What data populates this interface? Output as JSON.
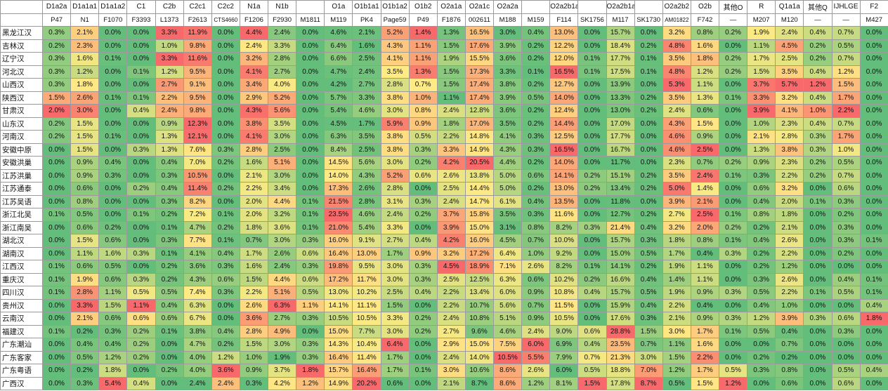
{
  "table": {
    "haplogroups": [
      "D1a2a",
      "D1a1a1",
      "D1a1a2",
      "C1",
      "C2b",
      "C2c1",
      "C2c2",
      "N1a",
      "N1b",
      "",
      "O1a",
      "O1b1a1",
      "O1b1a2",
      "O1b2",
      "O2a1a",
      "O2a1c",
      "O2a2a",
      "",
      "O2a2b1a2",
      "",
      "O2a2b1a1",
      "",
      "O2a2b2",
      "O2b",
      "其他O",
      "R",
      "Q1a1a",
      "其他Q",
      "IJHLGE",
      "F2"
    ],
    "markers": [
      "P47",
      "N1",
      "F1070",
      "F3393",
      "L1373",
      "F2613",
      "CTS4660",
      "F1206",
      "F2930",
      "M1811",
      "M119",
      "PK4",
      "Page59",
      "P49",
      "F1876",
      "002611",
      "M188",
      "M159",
      "F114",
      "SK1756",
      "M117",
      "SK1730",
      "AM01822",
      "F742",
      "—",
      "M207",
      "M120",
      "—",
      "—",
      "M427"
    ],
    "rows": [
      {
        "region": "黑龙江汉",
        "values": [
          "0.3%",
          "2.1%",
          "0.0%",
          "0.0%",
          "3.3%",
          "11.9%",
          "0.0%",
          "4.4%",
          "2.4%",
          "0.0%",
          "4.6%",
          "2.1%",
          "5.2%",
          "1.4%",
          "1.3%",
          "16.5%",
          "3.0%",
          "0.4%",
          "13.0%",
          "0.0%",
          "15.7%",
          "0.0%",
          "3.2%",
          "0.8%",
          "0.2%",
          "1.9%",
          "2.4%",
          "0.4%",
          "0.7%",
          "0.0%"
        ]
      },
      {
        "region": "吉林汉",
        "values": [
          "0.2%",
          "2.3%",
          "0.0%",
          "0.0%",
          "1.0%",
          "9.8%",
          "0.0%",
          "2.4%",
          "3.3%",
          "0.0%",
          "6.4%",
          "1.6%",
          "4.3%",
          "1.1%",
          "1.5%",
          "17.6%",
          "3.9%",
          "0.2%",
          "12.2%",
          "0.0%",
          "18.4%",
          "0.2%",
          "4.8%",
          "1.6%",
          "0.0%",
          "1.1%",
          "4.5%",
          "0.2%",
          "0.5%",
          "0.0%"
        ]
      },
      {
        "region": "辽宁汉",
        "values": [
          "0.3%",
          "1.6%",
          "0.1%",
          "0.0%",
          "3.3%",
          "11.6%",
          "0.0%",
          "3.2%",
          "2.8%",
          "0.0%",
          "6.6%",
          "2.5%",
          "4.1%",
          "1.1%",
          "1.9%",
          "15.5%",
          "3.6%",
          "0.2%",
          "12.0%",
          "0.1%",
          "17.7%",
          "0.1%",
          "3.5%",
          "1.8%",
          "0.2%",
          "1.7%",
          "2.5%",
          "0.2%",
          "0.7%",
          "0.0%"
        ]
      },
      {
        "region": "河北汉",
        "values": [
          "0.3%",
          "1.2%",
          "0.0%",
          "0.1%",
          "1.2%",
          "9.5%",
          "0.0%",
          "4.1%",
          "2.7%",
          "0.0%",
          "4.7%",
          "2.4%",
          "3.5%",
          "1.3%",
          "1.5%",
          "17.3%",
          "3.3%",
          "0.1%",
          "16.5%",
          "0.1%",
          "17.5%",
          "0.1%",
          "4.8%",
          "1.2%",
          "0.2%",
          "1.5%",
          "3.5%",
          "0.4%",
          "1.2%",
          "0.0%"
        ]
      },
      {
        "region": "山西汉",
        "values": [
          "0.3%",
          "1.8%",
          "0.0%",
          "0.0%",
          "2.7%",
          "9.1%",
          "0.0%",
          "3.4%",
          "4.0%",
          "0.0%",
          "4.2%",
          "2.7%",
          "2.8%",
          "0.7%",
          "1.5%",
          "17.4%",
          "3.8%",
          "0.2%",
          "12.7%",
          "0.0%",
          "13.9%",
          "0.0%",
          "5.3%",
          "1.1%",
          "0.0%",
          "3.7%",
          "5.7%",
          "1.2%",
          "1.5%",
          "0.0%"
        ]
      },
      {
        "region": "陕西汉",
        "values": [
          "1.5%",
          "2.6%",
          "0.1%",
          "0.1%",
          "2.2%",
          "9.5%",
          "0.0%",
          "2.9%",
          "5.2%",
          "0.0%",
          "5.7%",
          "3.3%",
          "3.8%",
          "1.0%",
          "1.1%",
          "17.4%",
          "3.9%",
          "0.5%",
          "14.0%",
          "0.0%",
          "13.3%",
          "0.2%",
          "3.5%",
          "1.3%",
          "0.1%",
          "3.3%",
          "3.2%",
          "0.4%",
          "1.7%",
          "0.0%"
        ]
      },
      {
        "region": "甘肃汉",
        "values": [
          "2.0%",
          "3.0%",
          "0.0%",
          "0.4%",
          "2.4%",
          "9.8%",
          "0.0%",
          "4.3%",
          "5.6%",
          "0.0%",
          "5.4%",
          "4.6%",
          "3.0%",
          "0.8%",
          "2.4%",
          "12.8%",
          "3.6%",
          "0.2%",
          "12.4%",
          "0.0%",
          "13.0%",
          "0.2%",
          "2.4%",
          "0.6%",
          "0.0%",
          "3.9%",
          "4.1%",
          "1.0%",
          "2.2%",
          "0.0%"
        ]
      },
      {
        "region": "山东汉",
        "values": [
          "0.2%",
          "1.5%",
          "0.0%",
          "0.0%",
          "0.9%",
          "12.3%",
          "0.0%",
          "3.8%",
          "3.5%",
          "0.0%",
          "4.5%",
          "1.7%",
          "5.9%",
          "0.9%",
          "1.8%",
          "17.0%",
          "3.5%",
          "0.2%",
          "14.4%",
          "0.0%",
          "17.0%",
          "0.0%",
          "4.3%",
          "1.5%",
          "0.0%",
          "1.0%",
          "2.3%",
          "0.4%",
          "0.7%",
          "0.0%"
        ]
      },
      {
        "region": "河南汉",
        "values": [
          "0.2%",
          "1.5%",
          "0.1%",
          "0.0%",
          "1.3%",
          "12.1%",
          "0.0%",
          "4.1%",
          "3.0%",
          "0.0%",
          "6.3%",
          "3.5%",
          "3.8%",
          "0.5%",
          "2.2%",
          "14.8%",
          "4.1%",
          "0.3%",
          "12.5%",
          "0.0%",
          "17.7%",
          "0.0%",
          "4.6%",
          "0.9%",
          "0.0%",
          "2.1%",
          "2.8%",
          "0.3%",
          "1.7%",
          "0.0%"
        ]
      },
      {
        "region": "安徽中原",
        "values": [
          "0.0%",
          "1.5%",
          "0.0%",
          "0.3%",
          "1.3%",
          "7.6%",
          "0.3%",
          "2.8%",
          "2.5%",
          "0.0%",
          "8.4%",
          "2.5%",
          "3.8%",
          "0.3%",
          "3.3%",
          "14.9%",
          "4.3%",
          "0.3%",
          "16.5%",
          "0.0%",
          "16.7%",
          "0.0%",
          "4.6%",
          "2.5%",
          "0.0%",
          "1.3%",
          "3.8%",
          "0.3%",
          "1.0%",
          "0.0%"
        ]
      },
      {
        "region": "安徽洪巢",
        "values": [
          "0.0%",
          "0.9%",
          "0.4%",
          "0.0%",
          "0.4%",
          "7.0%",
          "0.2%",
          "1.6%",
          "5.1%",
          "0.0%",
          "14.5%",
          "5.6%",
          "3.0%",
          "0.2%",
          "4.2%",
          "20.5%",
          "4.4%",
          "0.2%",
          "14.0%",
          "0.0%",
          "11.7%",
          "0.0%",
          "2.3%",
          "0.7%",
          "0.2%",
          "0.9%",
          "2.3%",
          "0.2%",
          "0.5%",
          "0.0%"
        ]
      },
      {
        "region": "江苏洪巢",
        "values": [
          "0.0%",
          "0.9%",
          "0.3%",
          "0.0%",
          "0.3%",
          "10.5%",
          "0.0%",
          "2.1%",
          "3.0%",
          "0.0%",
          "14.0%",
          "4.3%",
          "5.2%",
          "0.6%",
          "2.6%",
          "13.8%",
          "5.0%",
          "0.6%",
          "14.1%",
          "0.2%",
          "15.1%",
          "0.2%",
          "3.5%",
          "2.4%",
          "0.1%",
          "0.3%",
          "2.2%",
          "0.2%",
          "0.7%",
          "0.0%"
        ]
      },
      {
        "region": "江苏通泰",
        "values": [
          "0.0%",
          "0.6%",
          "0.0%",
          "0.2%",
          "0.4%",
          "11.4%",
          "0.2%",
          "2.2%",
          "3.4%",
          "0.0%",
          "17.3%",
          "2.6%",
          "2.8%",
          "0.0%",
          "2.5%",
          "14.4%",
          "5.0%",
          "0.2%",
          "13.0%",
          "0.2%",
          "13.4%",
          "0.2%",
          "5.0%",
          "1.4%",
          "0.0%",
          "0.6%",
          "3.2%",
          "0.0%",
          "0.6%",
          "0.0%"
        ]
      },
      {
        "region": "江苏吴语",
        "values": [
          "0.0%",
          "0.8%",
          "0.0%",
          "0.0%",
          "0.3%",
          "8.2%",
          "0.0%",
          "2.0%",
          "4.4%",
          "0.1%",
          "21.5%",
          "2.8%",
          "3.1%",
          "0.3%",
          "2.4%",
          "14.7%",
          "6.1%",
          "0.4%",
          "13.5%",
          "0.0%",
          "11.8%",
          "0.0%",
          "3.9%",
          "2.1%",
          "0.0%",
          "0.4%",
          "2.0%",
          "0.1%",
          "0.3%",
          "0.0%"
        ]
      },
      {
        "region": "浙江北吴",
        "values": [
          "0.1%",
          "0.5%",
          "0.0%",
          "0.1%",
          "0.2%",
          "7.2%",
          "0.1%",
          "2.0%",
          "3.2%",
          "0.1%",
          "23.5%",
          "4.6%",
          "2.4%",
          "0.2%",
          "3.7%",
          "15.8%",
          "3.5%",
          "0.3%",
          "11.6%",
          "0.0%",
          "12.7%",
          "0.2%",
          "2.7%",
          "2.5%",
          "0.1%",
          "0.8%",
          "1.8%",
          "0.0%",
          "0.2%",
          "0.0%"
        ]
      },
      {
        "region": "浙江南吴",
        "values": [
          "0.0%",
          "0.6%",
          "0.2%",
          "0.0%",
          "0.1%",
          "4.7%",
          "0.2%",
          "1.8%",
          "3.6%",
          "0.1%",
          "21.0%",
          "5.4%",
          "3.3%",
          "0.0%",
          "3.9%",
          "15.0%",
          "3.1%",
          "0.8%",
          "8.2%",
          "0.3%",
          "21.4%",
          "0.4%",
          "3.2%",
          "2.0%",
          "0.2%",
          "0.2%",
          "2.1%",
          "0.0%",
          "0.3%",
          "0.0%"
        ]
      },
      {
        "region": "湖北汉",
        "values": [
          "0.0%",
          "1.5%",
          "0.6%",
          "0.0%",
          "0.3%",
          "7.7%",
          "0.1%",
          "0.7%",
          "3.0%",
          "0.3%",
          "16.0%",
          "9.1%",
          "2.7%",
          "0.4%",
          "4.2%",
          "16.0%",
          "4.5%",
          "0.7%",
          "10.0%",
          "0.0%",
          "15.7%",
          "0.3%",
          "1.8%",
          "0.8%",
          "0.1%",
          "0.4%",
          "2.6%",
          "0.0%",
          "0.3%",
          "0.1%"
        ]
      },
      {
        "region": "湖南汉",
        "values": [
          "0.0%",
          "1.1%",
          "1.6%",
          "0.3%",
          "0.1%",
          "4.1%",
          "0.4%",
          "1.7%",
          "2.6%",
          "0.6%",
          "16.4%",
          "13.0%",
          "1.7%",
          "0.9%",
          "3.2%",
          "17.2%",
          "6.4%",
          "1.0%",
          "9.2%",
          "0.0%",
          "15.0%",
          "0.5%",
          "1.7%",
          "0.4%",
          "0.3%",
          "0.2%",
          "2.2%",
          "0.0%",
          "0.2%",
          "0.0%"
        ]
      },
      {
        "region": "江西汉",
        "values": [
          "0.1%",
          "0.6%",
          "0.5%",
          "0.0%",
          "0.2%",
          "3.6%",
          "0.3%",
          "1.6%",
          "2.4%",
          "0.3%",
          "19.8%",
          "9.5%",
          "3.0%",
          "0.3%",
          "4.5%",
          "18.9%",
          "7.1%",
          "2.6%",
          "8.2%",
          "0.1%",
          "14.1%",
          "0.2%",
          "1.9%",
          "1.1%",
          "0.0%",
          "0.2%",
          "1.2%",
          "0.0%",
          "0.0%",
          "0.0%"
        ]
      },
      {
        "region": "重庆汉",
        "values": [
          "0.1%",
          "1.9%",
          "0.6%",
          "0.3%",
          "0.2%",
          "4.3%",
          "0.6%",
          "1.5%",
          "4.4%",
          "0.6%",
          "17.2%",
          "11.7%",
          "3.0%",
          "0.3%",
          "2.5%",
          "12.5%",
          "6.3%",
          "0.6%",
          "10.2%",
          "0.2%",
          "16.6%",
          "0.4%",
          "1.4%",
          "1.1%",
          "0.0%",
          "0.3%",
          "2.6%",
          "0.0%",
          "0.4%",
          "0.1%"
        ]
      },
      {
        "region": "四川汉",
        "values": [
          "0.1%",
          "2.8%",
          "1.1%",
          "0.5%",
          "0.5%",
          "7.4%",
          "0.3%",
          "2.2%",
          "5.1%",
          "0.5%",
          "13.0%",
          "10.2%",
          "2.5%",
          "0.4%",
          "2.2%",
          "13.4%",
          "6.0%",
          "0.9%",
          "10.8%",
          "0.4%",
          "15.7%",
          "0.5%",
          "1.9%",
          "0.9%",
          "0.3%",
          "0.5%",
          "2.2%",
          "0.1%",
          "0.5%",
          "0.1%"
        ]
      },
      {
        "region": "贵州汉",
        "values": [
          "0.0%",
          "3.3%",
          "1.5%",
          "1.1%",
          "0.4%",
          "6.3%",
          "0.0%",
          "2.6%",
          "6.3%",
          "1.1%",
          "14.1%",
          "11.1%",
          "1.5%",
          "0.0%",
          "2.2%",
          "10.7%",
          "5.6%",
          "0.7%",
          "11.5%",
          "0.0%",
          "15.9%",
          "0.4%",
          "2.2%",
          "0.4%",
          "0.0%",
          "0.4%",
          "1.0%",
          "0.0%",
          "0.0%",
          "0.4%"
        ]
      },
      {
        "region": "云南汉",
        "values": [
          "0.0%",
          "2.1%",
          "0.6%",
          "0.6%",
          "0.6%",
          "6.7%",
          "0.0%",
          "3.6%",
          "2.7%",
          "0.3%",
          "10.5%",
          "10.5%",
          "3.3%",
          "0.2%",
          "2.4%",
          "10.8%",
          "5.1%",
          "0.9%",
          "10.5%",
          "0.0%",
          "17.6%",
          "0.3%",
          "2.1%",
          "0.9%",
          "0.3%",
          "1.2%",
          "3.9%",
          "0.3%",
          "0.6%",
          "1.8%"
        ]
      },
      {
        "region": "福建汉",
        "values": [
          "0.1%",
          "0.2%",
          "0.3%",
          "0.2%",
          "0.1%",
          "3.8%",
          "0.4%",
          "2.8%",
          "4.9%",
          "0.0%",
          "15.0%",
          "7.7%",
          "3.0%",
          "0.2%",
          "2.7%",
          "9.6%",
          "4.6%",
          "2.4%",
          "9.0%",
          "0.6%",
          "28.8%",
          "1.5%",
          "3.0%",
          "1.7%",
          "0.1%",
          "0.5%",
          "0.4%",
          "0.0%",
          "0.3%",
          "0.0%"
        ]
      },
      {
        "region": "广东潮汕",
        "values": [
          "0.0%",
          "0.4%",
          "0.4%",
          "0.2%",
          "0.0%",
          "4.7%",
          "0.2%",
          "1.5%",
          "3.0%",
          "0.3%",
          "14.3%",
          "10.4%",
          "6.4%",
          "0.0%",
          "2.9%",
          "15.0%",
          "7.5%",
          "6.0%",
          "6.9%",
          "0.4%",
          "23.5%",
          "0.7%",
          "1.1%",
          "1.6%",
          "0.0%",
          "0.0%",
          "0.7%",
          "0.0%",
          "0.0%",
          "0.0%"
        ]
      },
      {
        "region": "广东客家",
        "values": [
          "0.0%",
          "0.5%",
          "1.2%",
          "0.2%",
          "0.0%",
          "4.0%",
          "1.2%",
          "1.0%",
          "1.9%",
          "0.3%",
          "16.4%",
          "11.4%",
          "1.7%",
          "0.0%",
          "2.4%",
          "14.0%",
          "10.5%",
          "5.5%",
          "7.9%",
          "0.7%",
          "21.3%",
          "3.0%",
          "1.5%",
          "2.2%",
          "0.0%",
          "0.2%",
          "0.2%",
          "0.0%",
          "0.0%",
          "0.0%"
        ]
      },
      {
        "region": "广东粤语",
        "values": [
          "0.0%",
          "0.2%",
          "1.8%",
          "0.0%",
          "0.2%",
          "4.0%",
          "3.6%",
          "0.9%",
          "3.7%",
          "1.8%",
          "15.7%",
          "16.4%",
          "1.7%",
          "0.1%",
          "3.0%",
          "10.6%",
          "8.6%",
          "2.6%",
          "6.0%",
          "0.5%",
          "18.8%",
          "7.0%",
          "1.2%",
          "1.7%",
          "0.5%",
          "0.3%",
          "0.8%",
          "0.0%",
          "0.5%",
          "0.4%"
        ]
      },
      {
        "region": "广西汉",
        "values": [
          "0.0%",
          "0.3%",
          "5.4%",
          "0.4%",
          "0.0%",
          "2.4%",
          "2.4%",
          "0.3%",
          "4.2%",
          "1.2%",
          "14.9%",
          "20.2%",
          "0.6%",
          "0.0%",
          "2.1%",
          "8.7%",
          "8.6%",
          "1.2%",
          "8.1%",
          "1.5%",
          "17.8%",
          "8.7%",
          "0.5%",
          "1.5%",
          "1.2%",
          "0.0%",
          "0.6%",
          "0.0%",
          "0.6%",
          "0.0%"
        ]
      }
    ]
  },
  "colors": {
    "low": "#63be7b",
    "mid": "#ffeb84",
    "high": "#f8696b"
  }
}
